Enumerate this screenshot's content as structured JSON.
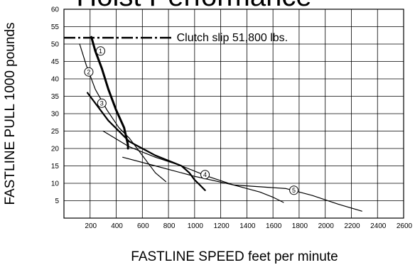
{
  "chart_data": {
    "type": "line",
    "title": "Hoist Performance",
    "xlabel": "FASTLINE SPEED feet per minute",
    "ylabel": "FASTLINE PULL 1000 pounds",
    "xlim": [
      0,
      2600
    ],
    "ylim": [
      0,
      60
    ],
    "x_ticks": [
      200,
      400,
      600,
      800,
      1000,
      1200,
      1400,
      1600,
      1800,
      2000,
      2200,
      2400,
      2600
    ],
    "y_ticks": [
      5,
      10,
      15,
      20,
      25,
      30,
      35,
      40,
      45,
      50,
      55,
      60
    ],
    "x_tick_labels": [
      "200",
      "400",
      "600",
      "800",
      "1000",
      "1200",
      "1400",
      "1600",
      "1800",
      "2000",
      "2200",
      "2400",
      "2600"
    ],
    "y_tick_labels": [
      "5",
      "10",
      "15",
      "20",
      "25",
      "30",
      "35",
      "40",
      "45",
      "50",
      "55",
      "60"
    ],
    "grid": true,
    "reference_line": {
      "label": "Clutch slip 51,800 lbs.",
      "y": 51.8,
      "x_range": [
        0,
        830
      ],
      "style": "dash-dot"
    },
    "series": [
      {
        "name": "1",
        "x": [
          210,
          240,
          290,
          340,
          400,
          460,
          490,
          490
        ],
        "y": [
          52,
          48,
          43,
          37,
          31,
          26,
          21,
          20
        ]
      },
      {
        "name": "2",
        "x": [
          120,
          170,
          240,
          330,
          420,
          500,
          560,
          620,
          700,
          780
        ],
        "y": [
          50,
          44,
          37,
          31,
          26,
          23,
          20,
          17,
          13,
          10.5
        ]
      },
      {
        "name": "3",
        "x": [
          180,
          260,
          340,
          420,
          500,
          600,
          700,
          800,
          900,
          960,
          1000,
          1040,
          1080
        ],
        "y": [
          36,
          32,
          28,
          25,
          22,
          20,
          18,
          16.5,
          15,
          13,
          11,
          9.5,
          8
        ]
      },
      {
        "name": "4",
        "x": [
          300,
          500,
          700,
          900,
          1100,
          1300,
          1500,
          1600,
          1680
        ],
        "y": [
          25,
          20.5,
          17.5,
          15,
          12,
          9.5,
          7.5,
          6,
          4.5
        ]
      },
      {
        "name": "5",
        "x": [
          450,
          700,
          1000,
          1300,
          1500,
          1700,
          1900,
          2100,
          2280
        ],
        "y": [
          17.5,
          15,
          12,
          9.5,
          9,
          8.5,
          6.5,
          4,
          2
        ]
      }
    ],
    "series_markers": [
      {
        "label": "1",
        "x": 280,
        "y": 48
      },
      {
        "label": "2",
        "x": 190,
        "y": 42
      },
      {
        "label": "3",
        "x": 290,
        "y": 33
      },
      {
        "label": "4",
        "x": 1080,
        "y": 12.5
      },
      {
        "label": "5",
        "x": 1760,
        "y": 8
      }
    ],
    "series_style": [
      {
        "width": 3
      },
      {
        "width": 1.2
      },
      {
        "width": 2.2
      },
      {
        "width": 1.2
      },
      {
        "width": 1.2
      }
    ]
  }
}
